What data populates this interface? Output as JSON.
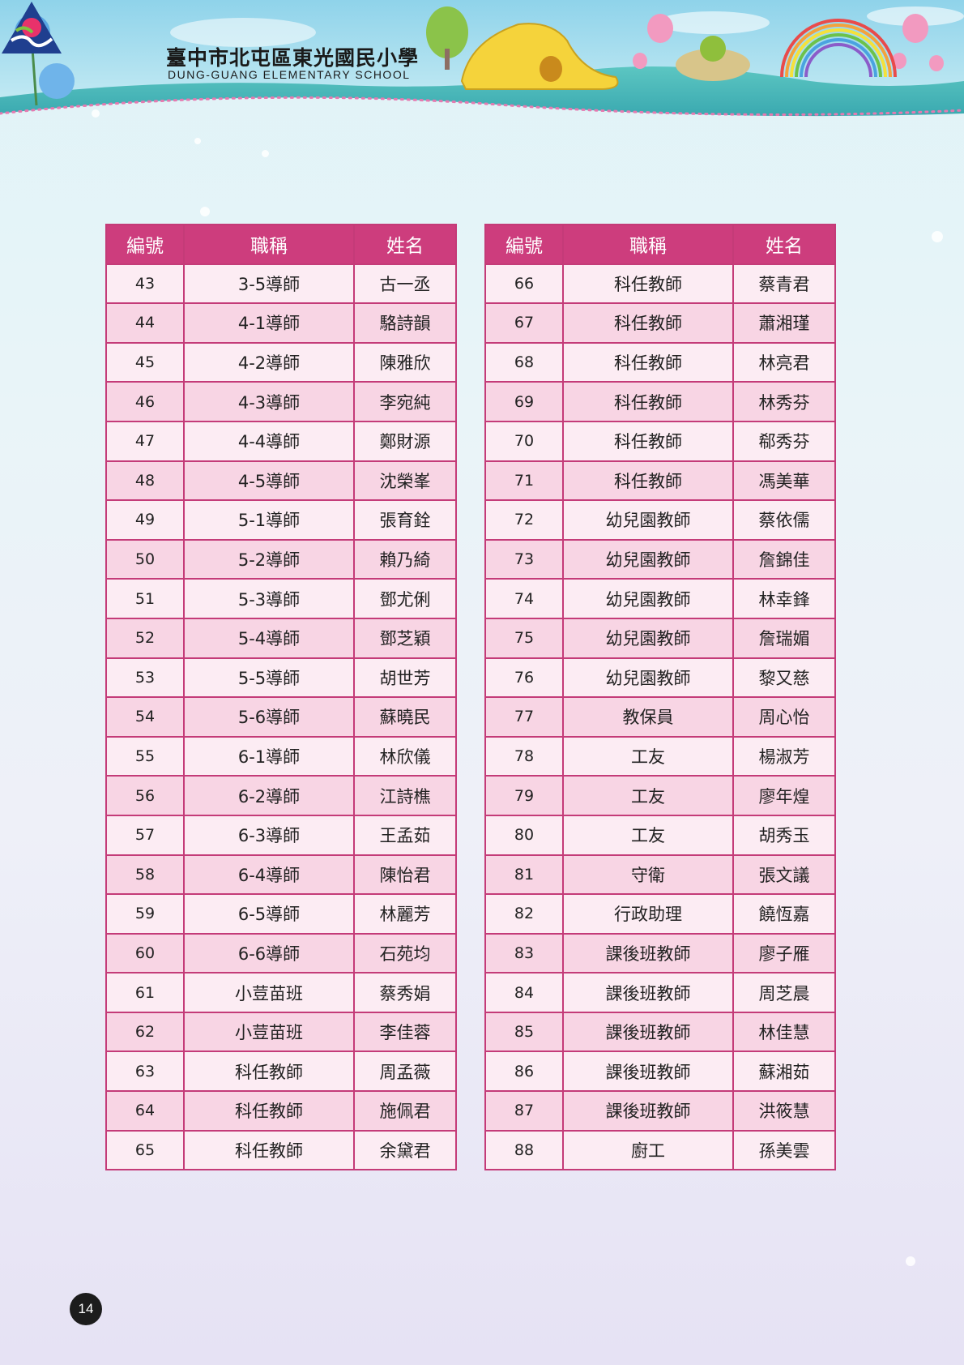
{
  "header": {
    "school_name_zh": "臺中市北屯區東光國民小學",
    "school_name_en": "DUNG-GUANG ELEMENTARY SCHOOL"
  },
  "table_headers": {
    "number": "編號",
    "title": "職稱",
    "name": "姓名"
  },
  "left_rows": [
    {
      "num": "43",
      "title": "3-5導師",
      "name": "古一丞"
    },
    {
      "num": "44",
      "title": "4-1導師",
      "name": "駱詩韻"
    },
    {
      "num": "45",
      "title": "4-2導師",
      "name": "陳雅欣"
    },
    {
      "num": "46",
      "title": "4-3導師",
      "name": "李宛純"
    },
    {
      "num": "47",
      "title": "4-4導師",
      "name": "鄭財源"
    },
    {
      "num": "48",
      "title": "4-5導師",
      "name": "沈榮峯"
    },
    {
      "num": "49",
      "title": "5-1導師",
      "name": "張育銓"
    },
    {
      "num": "50",
      "title": "5-2導師",
      "name": "賴乃綺"
    },
    {
      "num": "51",
      "title": "5-3導師",
      "name": "鄧尤俐"
    },
    {
      "num": "52",
      "title": "5-4導師",
      "name": "鄧芝穎"
    },
    {
      "num": "53",
      "title": "5-5導師",
      "name": "胡世芳"
    },
    {
      "num": "54",
      "title": "5-6導師",
      "name": "蘇曉民"
    },
    {
      "num": "55",
      "title": "6-1導師",
      "name": "林欣儀"
    },
    {
      "num": "56",
      "title": "6-2導師",
      "name": "江詩樵"
    },
    {
      "num": "57",
      "title": "6-3導師",
      "name": "王孟茹"
    },
    {
      "num": "58",
      "title": "6-4導師",
      "name": "陳怡君"
    },
    {
      "num": "59",
      "title": "6-5導師",
      "name": "林麗芳"
    },
    {
      "num": "60",
      "title": "6-6導師",
      "name": "石苑均"
    },
    {
      "num": "61",
      "title": "小荳苗班",
      "name": "蔡秀娟"
    },
    {
      "num": "62",
      "title": "小荳苗班",
      "name": "李佳蓉"
    },
    {
      "num": "63",
      "title": "科任教師",
      "name": "周孟薇"
    },
    {
      "num": "64",
      "title": "科任教師",
      "name": "施佩君"
    },
    {
      "num": "65",
      "title": "科任教師",
      "name": "余黛君"
    }
  ],
  "right_rows": [
    {
      "num": "66",
      "title": "科任教師",
      "name": "蔡青君"
    },
    {
      "num": "67",
      "title": "科任教師",
      "name": "蕭湘瑾"
    },
    {
      "num": "68",
      "title": "科任教師",
      "name": "林亮君"
    },
    {
      "num": "69",
      "title": "科任教師",
      "name": "林秀芬"
    },
    {
      "num": "70",
      "title": "科任教師",
      "name": "郗秀芬"
    },
    {
      "num": "71",
      "title": "科任教師",
      "name": "馮美華"
    },
    {
      "num": "72",
      "title": "幼兒園教師",
      "name": "蔡依儒"
    },
    {
      "num": "73",
      "title": "幼兒園教師",
      "name": "詹錦佳"
    },
    {
      "num": "74",
      "title": "幼兒園教師",
      "name": "林幸鋒"
    },
    {
      "num": "75",
      "title": "幼兒園教師",
      "name": "詹瑞媚"
    },
    {
      "num": "76",
      "title": "幼兒園教師",
      "name": "黎又慈"
    },
    {
      "num": "77",
      "title": "教保員",
      "name": "周心怡"
    },
    {
      "num": "78",
      "title": "工友",
      "name": "楊淑芳"
    },
    {
      "num": "79",
      "title": "工友",
      "name": "廖年煌"
    },
    {
      "num": "80",
      "title": "工友",
      "name": "胡秀玉"
    },
    {
      "num": "81",
      "title": "守衛",
      "name": "張文議"
    },
    {
      "num": "82",
      "title": "行政助理",
      "name": "饒恆嘉"
    },
    {
      "num": "83",
      "title": "課後班教師",
      "name": "廖子雁"
    },
    {
      "num": "84",
      "title": "課後班教師",
      "name": "周芝晨"
    },
    {
      "num": "85",
      "title": "課後班教師",
      "name": "林佳慧"
    },
    {
      "num": "86",
      "title": "課後班教師",
      "name": "蘇湘茹"
    },
    {
      "num": "87",
      "title": "課後班教師",
      "name": "洪筱慧"
    },
    {
      "num": "88",
      "title": "廚工",
      "name": "孫美雲"
    }
  ],
  "page_number": "14"
}
